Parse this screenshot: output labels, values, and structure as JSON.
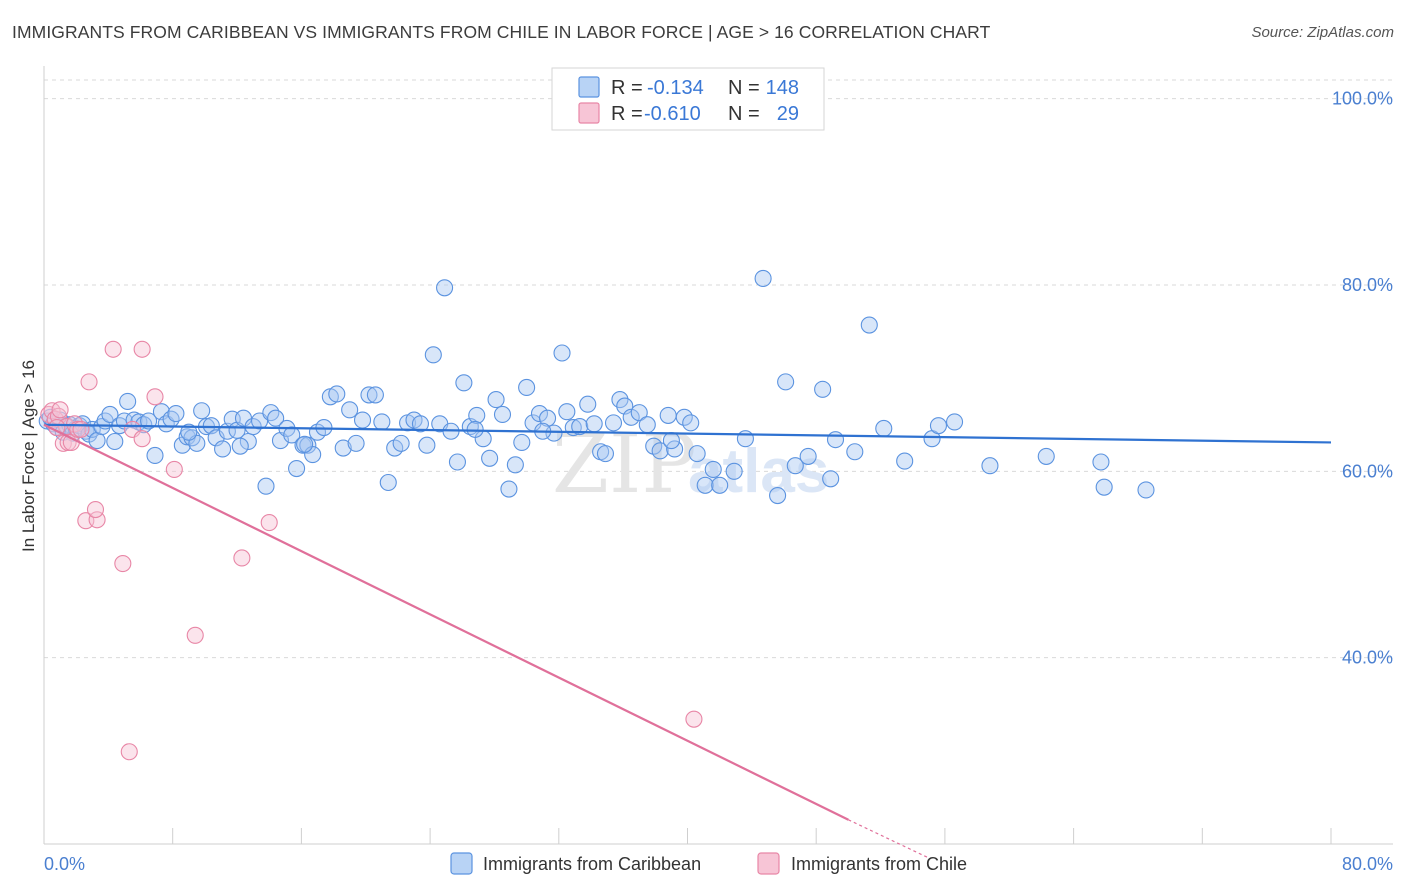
{
  "title": "IMMIGRANTS FROM CARIBBEAN VS IMMIGRANTS FROM CHILE IN LABOR FORCE | AGE > 16 CORRELATION CHART",
  "source": "Source: ZipAtlas.com",
  "colors": {
    "caribbean": "#5b93e0",
    "caribbean_fill": "#a9c8f2",
    "caribbean_line": "#2f72d1",
    "chile": "#e886a6",
    "chile_fill": "#f6c3d4",
    "chile_line": "#e0709a",
    "value_text": "#3a78d6",
    "grid": "#d9d9d9"
  },
  "legend_box": {
    "rows": [
      {
        "r_label": "R =",
        "r_value": "-0.134",
        "n_label": "N =",
        "n_value": "148"
      },
      {
        "r_label": "R =",
        "r_value": "-0.610",
        "n_label": "N =",
        "n_value": "29"
      }
    ]
  },
  "watermark": {
    "zip": "ZIP",
    "atlas": "atlas"
  },
  "chart_data": {
    "type": "scatter",
    "title": "IMMIGRANTS FROM CARIBBEAN VS IMMIGRANTS FROM CHILE IN LABOR FORCE | AGE > 16 CORRELATION CHART",
    "xlabel": "",
    "ylabel": "In Labor Force | Age > 16",
    "xlim": [
      0,
      80
    ],
    "ylim": [
      20,
      102
    ],
    "x_tick_labels": [
      "0.0%",
      "80.0%"
    ],
    "y_ticks": [
      40,
      60,
      80,
      100
    ],
    "y_tick_labels": [
      "40.0%",
      "60.0%",
      "80.0%",
      "100.0%"
    ],
    "grid": true,
    "legend_position": "bottom-center",
    "series": [
      {
        "name": "Immigrants from Caribbean",
        "r": -0.134,
        "n": 148,
        "trend": {
          "x": [
            0,
            80
          ],
          "y": [
            65.0,
            63.1
          ]
        },
        "points": [
          [
            0.2,
            65.4
          ],
          [
            0.4,
            65.8
          ],
          [
            0.6,
            65.1
          ],
          [
            0.8,
            64.7
          ],
          [
            1.0,
            65.5
          ],
          [
            1.2,
            64.2
          ],
          [
            1.4,
            64.9
          ],
          [
            1.6,
            65.0
          ],
          [
            1.8,
            64.1
          ],
          [
            2.0,
            64.6
          ],
          [
            2.2,
            64.9
          ],
          [
            2.4,
            65.1
          ],
          [
            2.6,
            64.3
          ],
          [
            2.8,
            64.0
          ],
          [
            3.0,
            64.5
          ],
          [
            3.3,
            63.3
          ],
          [
            3.6,
            64.8
          ],
          [
            3.8,
            65.4
          ],
          [
            4.1,
            66.1
          ],
          [
            4.4,
            63.2
          ],
          [
            4.7,
            64.9
          ],
          [
            5.0,
            65.4
          ],
          [
            5.2,
            67.5
          ],
          [
            5.6,
            65.5
          ],
          [
            5.9,
            65.3
          ],
          [
            6.2,
            65.0
          ],
          [
            6.5,
            65.4
          ],
          [
            6.9,
            61.7
          ],
          [
            7.3,
            66.4
          ],
          [
            7.6,
            65.1
          ],
          [
            7.9,
            65.6
          ],
          [
            8.2,
            66.2
          ],
          [
            8.6,
            62.8
          ],
          [
            8.9,
            63.7
          ],
          [
            9.2,
            63.6
          ],
          [
            9.5,
            63.0
          ],
          [
            9.8,
            66.5
          ],
          [
            10.1,
            64.8
          ],
          [
            10.4,
            64.9
          ],
          [
            10.7,
            63.6
          ],
          [
            11.1,
            62.4
          ],
          [
            11.4,
            64.3
          ],
          [
            11.7,
            65.6
          ],
          [
            12.0,
            64.4
          ],
          [
            12.4,
            65.7
          ],
          [
            12.7,
            63.2
          ],
          [
            13.0,
            64.8
          ],
          [
            13.4,
            65.4
          ],
          [
            13.8,
            58.4
          ],
          [
            14.1,
            66.3
          ],
          [
            14.4,
            65.7
          ],
          [
            14.7,
            63.3
          ],
          [
            15.1,
            64.6
          ],
          [
            15.4,
            63.9
          ],
          [
            15.7,
            60.3
          ],
          [
            16.1,
            62.8
          ],
          [
            16.4,
            62.8
          ],
          [
            16.7,
            61.8
          ],
          [
            17.0,
            64.2
          ],
          [
            17.4,
            64.7
          ],
          [
            17.8,
            68.0
          ],
          [
            18.2,
            68.3
          ],
          [
            18.6,
            62.5
          ],
          [
            19.0,
            66.6
          ],
          [
            19.4,
            63.0
          ],
          [
            19.8,
            65.5
          ],
          [
            20.2,
            68.2
          ],
          [
            20.6,
            68.2
          ],
          [
            21.0,
            65.3
          ],
          [
            21.4,
            58.8
          ],
          [
            21.8,
            62.5
          ],
          [
            22.2,
            63.0
          ],
          [
            22.6,
            65.2
          ],
          [
            23.0,
            65.5
          ],
          [
            23.4,
            65.1
          ],
          [
            23.8,
            62.8
          ],
          [
            24.2,
            72.5
          ],
          [
            24.6,
            65.1
          ],
          [
            24.9,
            79.7
          ],
          [
            25.3,
            64.3
          ],
          [
            25.7,
            61.0
          ],
          [
            26.1,
            69.5
          ],
          [
            26.5,
            64.8
          ],
          [
            26.9,
            66.0
          ],
          [
            27.3,
            63.5
          ],
          [
            27.7,
            61.4
          ],
          [
            28.1,
            67.7
          ],
          [
            28.5,
            66.1
          ],
          [
            28.9,
            58.1
          ],
          [
            29.3,
            60.7
          ],
          [
            29.7,
            63.1
          ],
          [
            30.0,
            69.0
          ],
          [
            30.4,
            65.2
          ],
          [
            30.8,
            66.2
          ],
          [
            31.3,
            65.7
          ],
          [
            31.7,
            64.1
          ],
          [
            32.2,
            72.7
          ],
          [
            32.5,
            66.4
          ],
          [
            32.9,
            64.7
          ],
          [
            33.3,
            64.8
          ],
          [
            33.8,
            67.2
          ],
          [
            34.2,
            65.1
          ],
          [
            34.6,
            62.1
          ],
          [
            34.9,
            61.9
          ],
          [
            35.4,
            65.2
          ],
          [
            35.8,
            67.7
          ],
          [
            36.1,
            67.0
          ],
          [
            36.5,
            65.8
          ],
          [
            37.0,
            66.3
          ],
          [
            37.5,
            65.0
          ],
          [
            37.9,
            62.7
          ],
          [
            38.3,
            62.2
          ],
          [
            38.8,
            66.0
          ],
          [
            39.2,
            62.4
          ],
          [
            39.8,
            65.8
          ],
          [
            40.2,
            65.2
          ],
          [
            40.6,
            61.9
          ],
          [
            41.1,
            58.5
          ],
          [
            41.6,
            60.2
          ],
          [
            42.0,
            58.5
          ],
          [
            42.9,
            60.0
          ],
          [
            43.6,
            63.5
          ],
          [
            44.7,
            80.7
          ],
          [
            45.6,
            57.4
          ],
          [
            46.1,
            69.6
          ],
          [
            46.7,
            60.6
          ],
          [
            47.5,
            61.6
          ],
          [
            48.4,
            68.8
          ],
          [
            48.9,
            59.2
          ],
          [
            49.2,
            63.4
          ],
          [
            50.4,
            62.1
          ],
          [
            51.3,
            75.7
          ],
          [
            52.2,
            64.6
          ],
          [
            53.5,
            61.1
          ],
          [
            55.2,
            63.5
          ],
          [
            55.6,
            64.9
          ],
          [
            56.6,
            65.3
          ],
          [
            58.8,
            60.6
          ],
          [
            62.3,
            61.6
          ],
          [
            65.7,
            61.0
          ],
          [
            65.9,
            58.3
          ],
          [
            68.5,
            58.0
          ],
          [
            9.0,
            64.2
          ],
          [
            12.2,
            62.7
          ],
          [
            16.2,
            62.9
          ],
          [
            26.8,
            64.5
          ],
          [
            31.0,
            64.3
          ],
          [
            39.0,
            63.3
          ]
        ]
      },
      {
        "name": "Immigrants from Chile",
        "r": -0.61,
        "n": 29,
        "trend": {
          "x": [
            0,
            50
          ],
          "y": [
            65.0,
            22.6
          ]
        },
        "trend_dashed": {
          "x": [
            50,
            55
          ],
          "y": [
            22.6,
            18.5
          ]
        },
        "points": [
          [
            0.3,
            66.1
          ],
          [
            0.5,
            66.5
          ],
          [
            0.7,
            65.6
          ],
          [
            0.9,
            65.9
          ],
          [
            1.0,
            66.6
          ],
          [
            1.2,
            63.0
          ],
          [
            1.4,
            64.8
          ],
          [
            1.5,
            63.1
          ],
          [
            1.7,
            63.1
          ],
          [
            1.9,
            65.1
          ],
          [
            2.1,
            64.5
          ],
          [
            2.3,
            64.5
          ],
          [
            2.8,
            69.6
          ],
          [
            2.6,
            54.7
          ],
          [
            3.3,
            54.8
          ],
          [
            3.2,
            55.9
          ],
          [
            4.3,
            73.1
          ],
          [
            4.9,
            50.1
          ],
          [
            5.3,
            29.9
          ],
          [
            5.5,
            64.5
          ],
          [
            6.1,
            73.1
          ],
          [
            6.1,
            63.5
          ],
          [
            6.9,
            68.0
          ],
          [
            8.1,
            60.2
          ],
          [
            9.4,
            42.4
          ],
          [
            12.3,
            50.7
          ],
          [
            14.0,
            54.5
          ],
          [
            40.4,
            33.4
          ],
          [
            0.8,
            64.7
          ]
        ]
      }
    ]
  }
}
